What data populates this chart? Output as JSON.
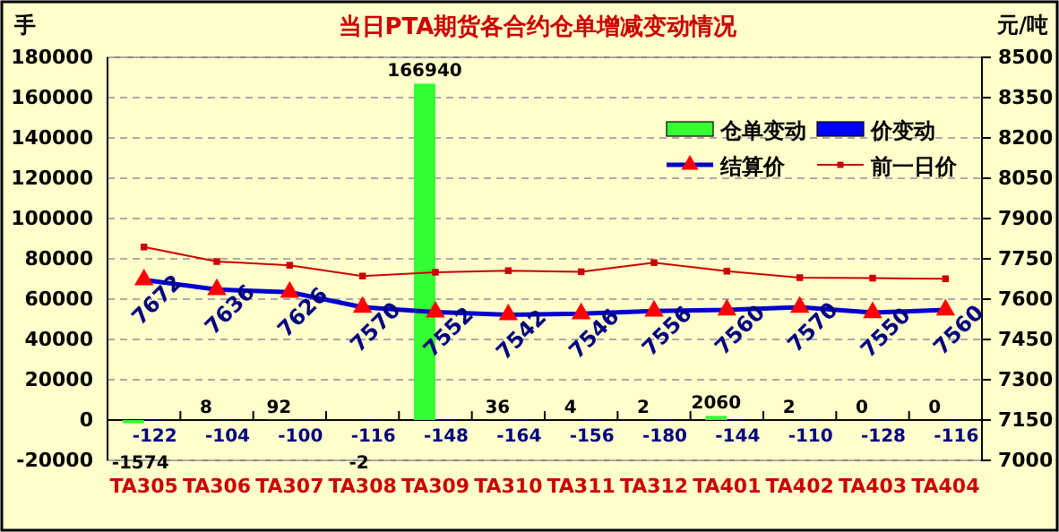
{
  "chart_data": {
    "type": "bar",
    "title": "当日PTA期货各合约仓单增减变动情况",
    "ylabel": "手",
    "y2label": "元/吨",
    "categories": [
      "TA305",
      "TA306",
      "TA307",
      "TA308",
      "TA309",
      "TA310",
      "TA311",
      "TA312",
      "TA401",
      "TA402",
      "TA403",
      "TA404"
    ],
    "series": [
      {
        "name": "仓单变动",
        "color": "#33ff33",
        "values": [
          -1574,
          8,
          92,
          -2,
          166940,
          36,
          4,
          2,
          2060,
          2,
          0,
          0
        ],
        "value_labels": [
          "-1574",
          "8",
          "92",
          "-2",
          "166940",
          "36",
          "4",
          "2",
          "2060",
          "2",
          "0",
          "0"
        ]
      },
      {
        "name": "价变动",
        "color": "#0000ff",
        "values": [
          -122,
          -104,
          -100,
          -116,
          -148,
          -164,
          -156,
          -180,
          -144,
          -110,
          -128,
          -116
        ],
        "value_labels": [
          "-122",
          "-104",
          "-100",
          "-116",
          "-148",
          "-164",
          "-156",
          "-180",
          "-144",
          "-110",
          "-128",
          "-116"
        ]
      },
      {
        "name": "结算价",
        "type": "line",
        "axis": "y2",
        "color": "#0000cc",
        "marker": "triangle",
        "values": [
          7672,
          7636,
          7626,
          7570,
          7552,
          7542,
          7546,
          7556,
          7560,
          7570,
          7550,
          7560
        ],
        "value_labels": [
          "7672",
          "7636",
          "7626",
          "7570",
          "7552",
          "7542",
          "7546",
          "7556",
          "7560",
          "7570",
          "7550",
          "7560"
        ]
      },
      {
        "name": "前一日价",
        "type": "line",
        "axis": "y2",
        "color": "#cc0000",
        "marker": "square",
        "values": [
          7794,
          7740,
          7726,
          7686,
          7700,
          7706,
          7702,
          7736,
          7704,
          7680,
          7678,
          7676
        ]
      }
    ],
    "ylim": [
      -20000,
      180000
    ],
    "yticks": [
      -20000,
      0,
      20000,
      40000,
      60000,
      80000,
      100000,
      120000,
      140000,
      160000,
      180000
    ],
    "y2lim": [
      7000,
      8500
    ],
    "y2ticks": [
      7000,
      7150,
      7300,
      7450,
      7600,
      7750,
      7900,
      8050,
      8200,
      8350,
      8500
    ],
    "grid": "y",
    "legend": "top right"
  }
}
